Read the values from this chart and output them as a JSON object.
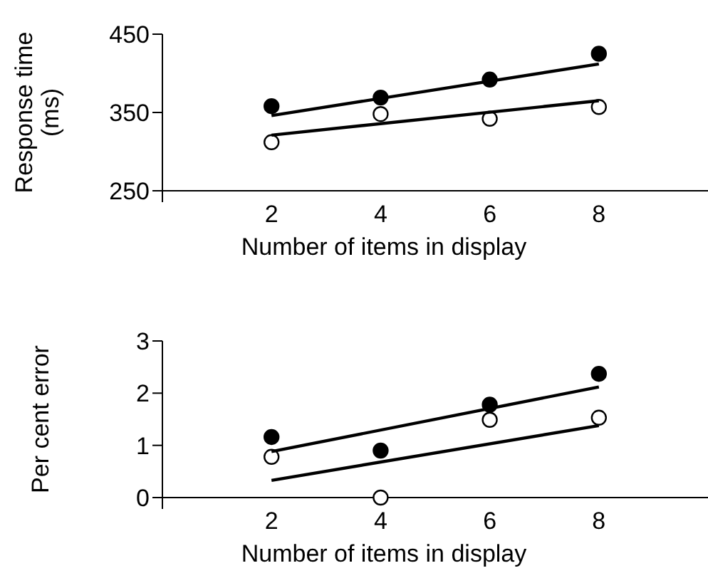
{
  "chart_data": [
    {
      "type": "scatter",
      "ylabel": "Response time\n(ms)",
      "xlabel": "Number of items in display",
      "xlim": [
        0,
        10
      ],
      "xticks": [
        2,
        4,
        6,
        8
      ],
      "ylim": [
        250,
        450
      ],
      "yticks": [
        250,
        350,
        450
      ],
      "grid": false,
      "series": [
        {
          "color": "#000000",
          "marker": "circle",
          "x": [
            2,
            4,
            6,
            8
          ],
          "values": [
            358,
            369,
            392,
            425
          ]
        },
        {
          "color": "#ffffff",
          "marker": "circle",
          "x": [
            2,
            4,
            6,
            8
          ],
          "values": [
            312,
            348,
            342,
            357
          ]
        },
        {
          "type": "line",
          "marker": "none",
          "color": "#000000",
          "x": [
            2,
            8
          ],
          "values": [
            346,
            412
          ]
        },
        {
          "type": "line",
          "marker": "none",
          "color": "#000000",
          "x": [
            2,
            8
          ],
          "values": [
            321,
            365
          ]
        }
      ]
    },
    {
      "type": "scatter",
      "ylabel": "Per cent error",
      "xlabel": "Number of items in display",
      "xlim": [
        0,
        10
      ],
      "xticks": [
        2,
        4,
        6,
        8
      ],
      "ylim": [
        0,
        3
      ],
      "yticks": [
        0,
        1,
        2,
        3
      ],
      "grid": false,
      "series": [
        {
          "color": "#000000",
          "marker": "circle",
          "x": [
            2,
            4,
            6,
            8
          ],
          "values": [
            1.16,
            0.9,
            1.78,
            2.37
          ]
        },
        {
          "color": "#ffffff",
          "marker": "circle",
          "x": [
            2,
            4,
            6,
            8
          ],
          "values": [
            0.78,
            0,
            1.49,
            1.53
          ]
        },
        {
          "type": "line",
          "marker": "none",
          "color": "#000000",
          "x": [
            2,
            8
          ],
          "values": [
            0.88,
            2.12
          ]
        },
        {
          "type": "line",
          "marker": "none",
          "color": "#000000",
          "x": [
            2,
            8
          ],
          "values": [
            0.33,
            1.38
          ]
        }
      ]
    }
  ]
}
